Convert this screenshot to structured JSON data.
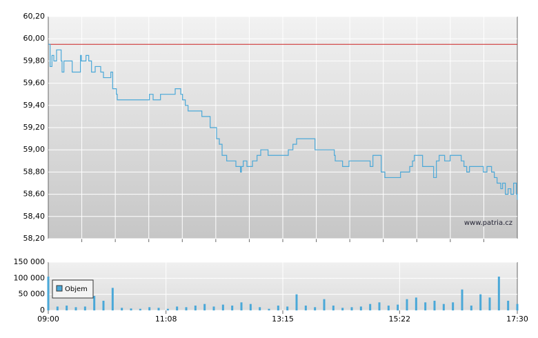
{
  "chart_data": [
    {
      "type": "line",
      "color": "#4aa8d8",
      "line_color": "#4aa8d8",
      "watermark": "www.patria.cz",
      "reference_line": 59.95,
      "reference_color": "#cc2222",
      "grid": true,
      "xlim": [
        "09:00",
        "17:30"
      ],
      "ylim": [
        58.2,
        60.2
      ],
      "yticks": [
        {
          "value": 58.2,
          "label": "58,20"
        },
        {
          "value": 58.4,
          "label": "58,40"
        },
        {
          "value": 58.6,
          "label": "58,60"
        },
        {
          "value": 58.8,
          "label": "58,80"
        },
        {
          "value": 59.0,
          "label": "59,00"
        },
        {
          "value": 59.2,
          "label": "59,20"
        },
        {
          "value": 59.4,
          "label": "59,40"
        },
        {
          "value": 59.6,
          "label": "59,60"
        },
        {
          "value": 59.8,
          "label": "59,80"
        },
        {
          "value": 60.0,
          "label": "60,00"
        },
        {
          "value": 60.2,
          "label": "60,20"
        }
      ],
      "x": [
        "09:00",
        "09:02",
        "09:04",
        "09:06",
        "09:09",
        "09:14",
        "09:15",
        "09:17",
        "09:26",
        "09:35",
        "09:36",
        "09:41",
        "09:44",
        "09:47",
        "09:51",
        "09:57",
        "10:00",
        "10:08",
        "10:10",
        "10:14",
        "10:15",
        "10:50",
        "10:54",
        "11:02",
        "11:18",
        "11:24",
        "11:26",
        "11:29",
        "11:32",
        "11:47",
        "11:56",
        "12:03",
        "12:06",
        "12:09",
        "12:14",
        "12:24",
        "12:29",
        "12:30",
        "12:32",
        "12:36",
        "12:42",
        "12:47",
        "12:51",
        "12:59",
        "13:21",
        "13:26",
        "13:30",
        "13:50",
        "14:11",
        "14:12",
        "14:20",
        "14:27",
        "14:50",
        "14:53",
        "15:02",
        "15:06",
        "15:23",
        "15:33",
        "15:36",
        "15:38",
        "15:47",
        "15:59",
        "16:02",
        "16:05",
        "16:11",
        "16:17",
        "16:29",
        "16:32",
        "16:35",
        "16:38",
        "16:53",
        "16:57",
        "17:02",
        "17:05",
        "17:08",
        "17:12",
        "17:14",
        "17:17",
        "17:20",
        "17:23",
        "17:26",
        "17:29",
        "17:30"
      ],
      "values": [
        59.95,
        59.75,
        59.85,
        59.8,
        59.9,
        59.8,
        59.7,
        59.8,
        59.7,
        59.85,
        59.8,
        59.85,
        59.8,
        59.7,
        59.75,
        59.7,
        59.65,
        59.7,
        59.55,
        59.5,
        59.45,
        59.5,
        59.45,
        59.5,
        59.55,
        59.5,
        59.45,
        59.4,
        59.35,
        59.3,
        59.2,
        59.1,
        59.05,
        58.95,
        58.9,
        58.85,
        58.8,
        58.85,
        58.9,
        58.85,
        58.9,
        58.95,
        59.0,
        58.95,
        59.0,
        59.05,
        59.1,
        59.0,
        58.95,
        58.9,
        58.85,
        58.9,
        58.85,
        58.95,
        58.8,
        58.75,
        58.8,
        58.85,
        58.9,
        58.95,
        58.85,
        58.75,
        58.9,
        58.95,
        58.9,
        58.95,
        58.9,
        58.85,
        58.8,
        58.85,
        58.8,
        58.85,
        58.8,
        58.75,
        58.7,
        58.65,
        58.7,
        58.6,
        58.65,
        58.6,
        58.7,
        58.6,
        58.55
      ]
    },
    {
      "type": "bar",
      "color": "#4aa8d8",
      "legend_label": "Objem",
      "grid": true,
      "xlim": [
        "09:00",
        "17:30"
      ],
      "xticks": [
        "09:00",
        "11:08",
        "13:15",
        "15:22",
        "17:30"
      ],
      "ylim": [
        0,
        150000
      ],
      "yticks": [
        0,
        {
          "value": 50000,
          "label": "50 000"
        },
        {
          "value": 100000,
          "label": "100 000"
        },
        {
          "value": 150000,
          "label": "150 000"
        }
      ],
      "x": [
        "09:00",
        "09:10",
        "09:20",
        "09:30",
        "09:40",
        "09:50",
        "10:00",
        "10:10",
        "10:20",
        "10:30",
        "10:40",
        "10:50",
        "11:00",
        "11:10",
        "11:20",
        "11:30",
        "11:40",
        "11:50",
        "12:00",
        "12:10",
        "12:20",
        "12:30",
        "12:40",
        "12:50",
        "13:00",
        "13:10",
        "13:20",
        "13:30",
        "13:40",
        "13:50",
        "14:00",
        "14:10",
        "14:20",
        "14:30",
        "14:40",
        "14:50",
        "15:00",
        "15:10",
        "15:20",
        "15:30",
        "15:40",
        "15:50",
        "16:00",
        "16:10",
        "16:20",
        "16:30",
        "16:40",
        "16:50",
        "17:00",
        "17:10",
        "17:20",
        "17:30"
      ],
      "values": [
        105000,
        12000,
        15000,
        10000,
        12000,
        45000,
        30000,
        70000,
        8000,
        6000,
        5000,
        10000,
        8000,
        5000,
        12000,
        10000,
        15000,
        20000,
        12000,
        18000,
        15000,
        25000,
        20000,
        10000,
        5000,
        15000,
        12000,
        50000,
        15000,
        10000,
        35000,
        15000,
        8000,
        10000,
        12000,
        20000,
        25000,
        15000,
        18000,
        35000,
        40000,
        25000,
        30000,
        20000,
        25000,
        65000,
        15000,
        50000,
        40000,
        105000,
        30000,
        20000
      ]
    }
  ]
}
